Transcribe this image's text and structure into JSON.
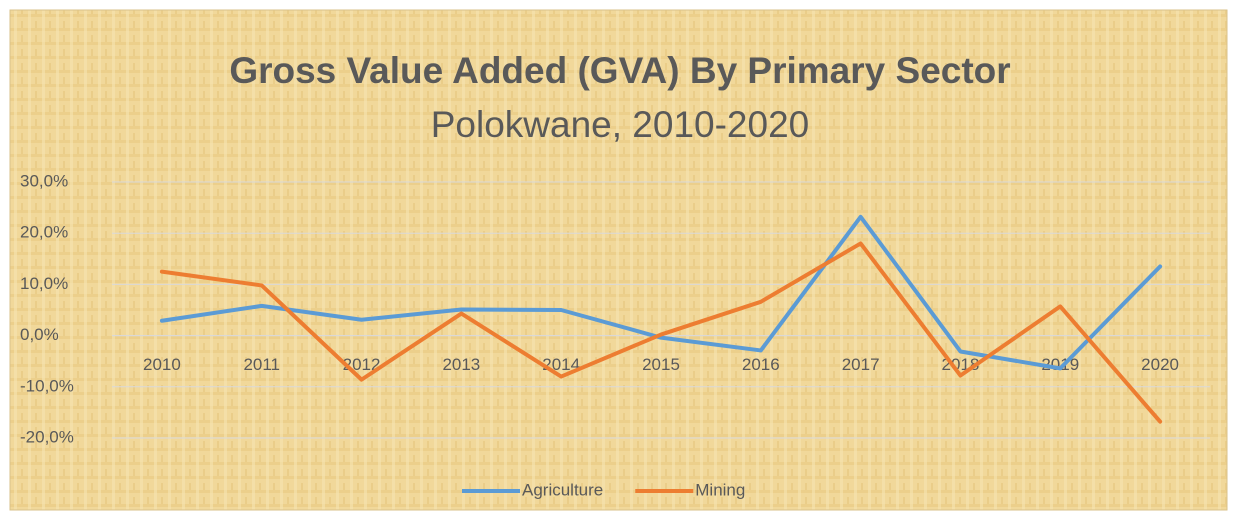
{
  "chart_data": {
    "type": "line",
    "title": "Gross Value Added (GVA) By Primary Sector",
    "subtitle": "Polokwane, 2010-2020",
    "categories": [
      "2010",
      "2011",
      "2012",
      "2013",
      "2014",
      "2015",
      "2016",
      "2017",
      "2018",
      "2019",
      "2020"
    ],
    "series": [
      {
        "name": "Agriculture",
        "color": "#5b9bd5",
        "values": [
          2.9,
          5.8,
          3.1,
          5.1,
          5.0,
          -0.4,
          -2.9,
          23.2,
          -3.1,
          -6.4,
          13.5
        ]
      },
      {
        "name": "Mining",
        "color": "#ed7d31",
        "values": [
          12.5,
          9.8,
          -8.6,
          4.3,
          -8.0,
          0.2,
          6.6,
          18.0,
          -7.8,
          5.7,
          -16.8
        ]
      }
    ],
    "ylim": [
      -20,
      30
    ],
    "yticks": [
      {
        "value": -20,
        "label": "-20,0%"
      },
      {
        "value": -10,
        "label": "-10,0%"
      },
      {
        "value": 0,
        "label": "0,0%"
      },
      {
        "value": 10,
        "label": "10,0%"
      },
      {
        "value": 20,
        "label": "20,0%"
      },
      {
        "value": 30,
        "label": "30,0%"
      }
    ],
    "grid": true,
    "legend": "bottom"
  }
}
